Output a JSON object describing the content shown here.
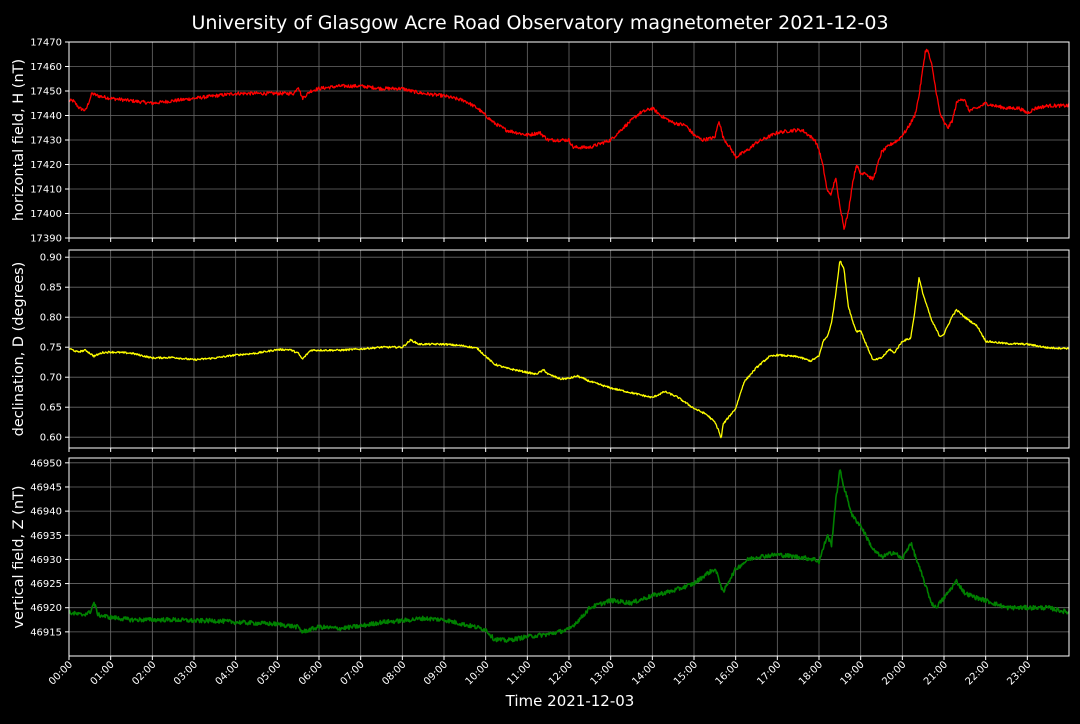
{
  "chart_data": {
    "type": "line",
    "title": "University of Glasgow Acre Road Observatory magnetometer 2021-12-03",
    "xlabel": "Time 2021-12-03",
    "x_ticks": [
      "00:00",
      "01:00",
      "02:00",
      "03:00",
      "04:00",
      "05:00",
      "06:00",
      "07:00",
      "08:00",
      "09:00",
      "10:00",
      "11:00",
      "12:00",
      "13:00",
      "14:00",
      "15:00",
      "16:00",
      "17:00",
      "18:00",
      "19:00",
      "20:00",
      "21:00",
      "22:00",
      "23:00"
    ],
    "x_range_hours": [
      0,
      24
    ],
    "grid": true,
    "panels": [
      {
        "ylabel": "horizontal field, H (nT)",
        "color": "#ff0000",
        "ylim": [
          17390,
          17470
        ],
        "y_ticks": [
          17390,
          17400,
          17410,
          17420,
          17430,
          17440,
          17450,
          17460,
          17470
        ],
        "tick_decimals": 0,
        "noise": 0.7,
        "points": [
          [
            0,
            17446
          ],
          [
            0.1,
            17446
          ],
          [
            0.25,
            17443
          ],
          [
            0.4,
            17442
          ],
          [
            0.55,
            17449
          ],
          [
            0.7,
            17448
          ],
          [
            1,
            17447
          ],
          [
            1.5,
            17446
          ],
          [
            2,
            17445
          ],
          [
            2.5,
            17446
          ],
          [
            3,
            17447
          ],
          [
            3.5,
            17448
          ],
          [
            4,
            17449
          ],
          [
            4.5,
            17449
          ],
          [
            5,
            17449
          ],
          [
            5.4,
            17449
          ],
          [
            5.5,
            17452
          ],
          [
            5.6,
            17447
          ],
          [
            5.8,
            17450
          ],
          [
            6,
            17451
          ],
          [
            6.5,
            17452
          ],
          [
            7,
            17452
          ],
          [
            7.5,
            17451
          ],
          [
            8,
            17451
          ],
          [
            8.2,
            17450
          ],
          [
            8.5,
            17449
          ],
          [
            9,
            17448
          ],
          [
            9.5,
            17446
          ],
          [
            9.8,
            17443
          ],
          [
            10,
            17440
          ],
          [
            10.2,
            17437
          ],
          [
            10.5,
            17434
          ],
          [
            11,
            17432
          ],
          [
            11.3,
            17433
          ],
          [
            11.5,
            17430
          ],
          [
            12,
            17430
          ],
          [
            12.1,
            17427
          ],
          [
            12.5,
            17427
          ],
          [
            13,
            17430
          ],
          [
            13.3,
            17435
          ],
          [
            13.7,
            17441
          ],
          [
            14,
            17443
          ],
          [
            14.2,
            17440
          ],
          [
            14.5,
            17437
          ],
          [
            14.8,
            17436
          ],
          [
            15,
            17432
          ],
          [
            15.2,
            17430
          ],
          [
            15.5,
            17431
          ],
          [
            15.6,
            17438
          ],
          [
            15.7,
            17431
          ],
          [
            15.9,
            17426
          ],
          [
            16,
            17423
          ],
          [
            16.3,
            17426
          ],
          [
            16.5,
            17429
          ],
          [
            17,
            17433
          ],
          [
            17.4,
            17434
          ],
          [
            17.6,
            17434
          ],
          [
            17.9,
            17430
          ],
          [
            18,
            17426
          ],
          [
            18.1,
            17419
          ],
          [
            18.2,
            17409
          ],
          [
            18.3,
            17408
          ],
          [
            18.4,
            17415
          ],
          [
            18.45,
            17408
          ],
          [
            18.55,
            17399
          ],
          [
            18.6,
            17394
          ],
          [
            18.7,
            17400
          ],
          [
            18.8,
            17412
          ],
          [
            18.9,
            17420
          ],
          [
            19,
            17416
          ],
          [
            19.1,
            17417
          ],
          [
            19.2,
            17415
          ],
          [
            19.3,
            17414
          ],
          [
            19.5,
            17425
          ],
          [
            19.7,
            17428
          ],
          [
            19.9,
            17430
          ],
          [
            20.1,
            17434
          ],
          [
            20.2,
            17437
          ],
          [
            20.3,
            17440
          ],
          [
            20.4,
            17448
          ],
          [
            20.5,
            17460
          ],
          [
            20.55,
            17466
          ],
          [
            20.6,
            17467
          ],
          [
            20.7,
            17461
          ],
          [
            20.8,
            17451
          ],
          [
            20.9,
            17441
          ],
          [
            21,
            17437
          ],
          [
            21.1,
            17435
          ],
          [
            21.2,
            17438
          ],
          [
            21.3,
            17445
          ],
          [
            21.4,
            17447
          ],
          [
            21.5,
            17446
          ],
          [
            21.6,
            17442
          ],
          [
            21.8,
            17443
          ],
          [
            22,
            17445
          ],
          [
            22.2,
            17444
          ],
          [
            22.5,
            17443
          ],
          [
            22.8,
            17443
          ],
          [
            23,
            17441
          ],
          [
            23.2,
            17443
          ],
          [
            23.5,
            17444
          ],
          [
            23.8,
            17444
          ],
          [
            24,
            17444
          ]
        ]
      },
      {
        "ylabel": "declination, D (degrees)",
        "color": "#ffff00",
        "ylim": [
          0.582,
          0.912
        ],
        "y_ticks": [
          0.6,
          0.65,
          0.7,
          0.75,
          0.8,
          0.85,
          0.9
        ],
        "tick_decimals": 2,
        "noise": 0.0015,
        "points": [
          [
            0,
            0.748
          ],
          [
            0.2,
            0.742
          ],
          [
            0.4,
            0.745
          ],
          [
            0.6,
            0.735
          ],
          [
            0.8,
            0.741
          ],
          [
            1,
            0.742
          ],
          [
            1.5,
            0.74
          ],
          [
            2,
            0.732
          ],
          [
            2.5,
            0.733
          ],
          [
            3,
            0.729
          ],
          [
            3.5,
            0.732
          ],
          [
            4,
            0.737
          ],
          [
            4.5,
            0.74
          ],
          [
            5,
            0.746
          ],
          [
            5.3,
            0.746
          ],
          [
            5.5,
            0.74
          ],
          [
            5.6,
            0.73
          ],
          [
            5.8,
            0.745
          ],
          [
            6,
            0.745
          ],
          [
            6.5,
            0.745
          ],
          [
            7,
            0.747
          ],
          [
            7.5,
            0.75
          ],
          [
            8,
            0.75
          ],
          [
            8.2,
            0.762
          ],
          [
            8.4,
            0.755
          ],
          [
            9,
            0.755
          ],
          [
            9.5,
            0.752
          ],
          [
            9.8,
            0.748
          ],
          [
            10,
            0.735
          ],
          [
            10.2,
            0.722
          ],
          [
            10.5,
            0.715
          ],
          [
            11,
            0.708
          ],
          [
            11.2,
            0.705
          ],
          [
            11.4,
            0.712
          ],
          [
            11.5,
            0.705
          ],
          [
            11.8,
            0.697
          ],
          [
            12,
            0.698
          ],
          [
            12.2,
            0.702
          ],
          [
            12.5,
            0.693
          ],
          [
            13,
            0.682
          ],
          [
            13.5,
            0.674
          ],
          [
            14,
            0.666
          ],
          [
            14.3,
            0.676
          ],
          [
            14.6,
            0.667
          ],
          [
            15,
            0.648
          ],
          [
            15.3,
            0.638
          ],
          [
            15.5,
            0.625
          ],
          [
            15.6,
            0.61
          ],
          [
            15.65,
            0.597
          ],
          [
            15.7,
            0.622
          ],
          [
            16,
            0.648
          ],
          [
            16.2,
            0.692
          ],
          [
            16.5,
            0.716
          ],
          [
            16.8,
            0.734
          ],
          [
            17,
            0.737
          ],
          [
            17.5,
            0.734
          ],
          [
            17.8,
            0.727
          ],
          [
            18,
            0.735
          ],
          [
            18.1,
            0.76
          ],
          [
            18.2,
            0.768
          ],
          [
            18.3,
            0.79
          ],
          [
            18.4,
            0.838
          ],
          [
            18.5,
            0.895
          ],
          [
            18.6,
            0.88
          ],
          [
            18.7,
            0.82
          ],
          [
            18.8,
            0.795
          ],
          [
            18.9,
            0.776
          ],
          [
            19,
            0.778
          ],
          [
            19.1,
            0.76
          ],
          [
            19.3,
            0.728
          ],
          [
            19.5,
            0.732
          ],
          [
            19.7,
            0.747
          ],
          [
            19.8,
            0.74
          ],
          [
            20,
            0.76
          ],
          [
            20.2,
            0.765
          ],
          [
            20.3,
            0.81
          ],
          [
            20.4,
            0.865
          ],
          [
            20.5,
            0.838
          ],
          [
            20.7,
            0.795
          ],
          [
            20.9,
            0.768
          ],
          [
            21,
            0.772
          ],
          [
            21.2,
            0.802
          ],
          [
            21.3,
            0.812
          ],
          [
            21.5,
            0.8
          ],
          [
            21.8,
            0.785
          ],
          [
            22,
            0.76
          ],
          [
            22.5,
            0.756
          ],
          [
            23,
            0.755
          ],
          [
            23.5,
            0.749
          ],
          [
            24,
            0.748
          ]
        ]
      },
      {
        "ylabel": "vertical field, Z (nT)",
        "color": "#008000",
        "ylim": [
          46910,
          46951
        ],
        "y_ticks": [
          46915,
          46920,
          46925,
          46930,
          46935,
          46940,
          46945,
          46950
        ],
        "tick_decimals": 0,
        "noise": 0.45,
        "points": [
          [
            0,
            46919
          ],
          [
            0.3,
            46918.5
          ],
          [
            0.5,
            46919
          ],
          [
            0.6,
            46921
          ],
          [
            0.7,
            46918.5
          ],
          [
            1,
            46918
          ],
          [
            1.5,
            46917.5
          ],
          [
            2,
            46917.5
          ],
          [
            2.5,
            46917.5
          ],
          [
            3,
            46917.3
          ],
          [
            3.5,
            46917.3
          ],
          [
            4,
            46917
          ],
          [
            4.5,
            46916.8
          ],
          [
            5,
            46916.6
          ],
          [
            5.5,
            46916
          ],
          [
            5.6,
            46915
          ],
          [
            6,
            46916
          ],
          [
            6.5,
            46915.7
          ],
          [
            7,
            46916.2
          ],
          [
            7.5,
            46917
          ],
          [
            8,
            46917.3
          ],
          [
            8.5,
            46917.8
          ],
          [
            9,
            46917.5
          ],
          [
            9.5,
            46916.5
          ],
          [
            10,
            46915.5
          ],
          [
            10.2,
            46913.5
          ],
          [
            10.5,
            46913.2
          ],
          [
            11,
            46914
          ],
          [
            11.5,
            46914.5
          ],
          [
            12,
            46915.5
          ],
          [
            12.3,
            46918
          ],
          [
            12.5,
            46920
          ],
          [
            13,
            46921.5
          ],
          [
            13.5,
            46921
          ],
          [
            14,
            46922.5
          ],
          [
            14.5,
            46923.5
          ],
          [
            15,
            46925
          ],
          [
            15.3,
            46927
          ],
          [
            15.5,
            46928
          ],
          [
            15.6,
            46926
          ],
          [
            15.7,
            46923
          ],
          [
            15.8,
            46925
          ],
          [
            16,
            46928
          ],
          [
            16.3,
            46930
          ],
          [
            16.5,
            46930.5
          ],
          [
            17,
            46931
          ],
          [
            17.5,
            46930.5
          ],
          [
            17.9,
            46930
          ],
          [
            18,
            46929.5
          ],
          [
            18.2,
            46935
          ],
          [
            18.3,
            46933
          ],
          [
            18.4,
            46942
          ],
          [
            18.5,
            46948.5
          ],
          [
            18.6,
            46945
          ],
          [
            18.8,
            46939
          ],
          [
            19,
            46937
          ],
          [
            19.3,
            46932
          ],
          [
            19.5,
            46930.5
          ],
          [
            19.8,
            46931.5
          ],
          [
            20,
            46930
          ],
          [
            20.2,
            46933.5
          ],
          [
            20.3,
            46931
          ],
          [
            20.5,
            46926
          ],
          [
            20.7,
            46921
          ],
          [
            20.8,
            46920
          ],
          [
            21,
            46922
          ],
          [
            21.3,
            46925.5
          ],
          [
            21.5,
            46923
          ],
          [
            21.8,
            46922
          ],
          [
            22,
            46921.5
          ],
          [
            22.5,
            46920
          ],
          [
            23,
            46920
          ],
          [
            23.5,
            46920
          ],
          [
            24,
            46919
          ]
        ]
      }
    ]
  }
}
